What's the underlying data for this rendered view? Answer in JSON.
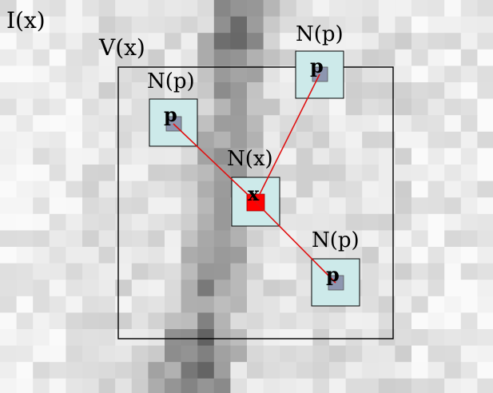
{
  "figure": {
    "image_label": "I(x)",
    "window_label": "V(x)",
    "center_patch": {
      "label": "N(x)",
      "pixel_glyph": "x"
    },
    "neighbor_patches": [
      {
        "label": "N(p)",
        "pixel_glyph": "p"
      },
      {
        "label": "N(p)",
        "pixel_glyph": "p"
      },
      {
        "label": "N(p)",
        "pixel_glyph": "p"
      }
    ]
  },
  "colors": {
    "patch_fill": "#cdeaea",
    "pixel_p": "#8d96b0",
    "pixel_x": "#ff0000",
    "connector": "#e01010",
    "window_border": "#000000"
  }
}
